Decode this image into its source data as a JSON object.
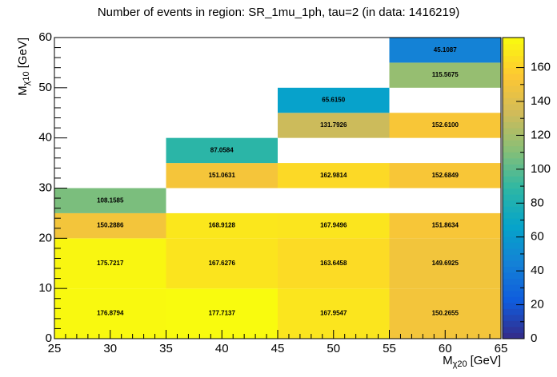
{
  "chart_data": {
    "type": "heatmap",
    "title": "Number of events in region: SR_1mu_1ph, tau=2 (in data: 1416219)",
    "xlabel": [
      "M",
      "χ20",
      "[GeV]"
    ],
    "ylabel": [
      "M",
      "χ10",
      "[GeV]"
    ],
    "xlim": [
      25,
      65
    ],
    "ylim": [
      0,
      60
    ],
    "xticks": [
      25,
      30,
      35,
      40,
      45,
      50,
      55,
      60,
      65
    ],
    "yticks": [
      0,
      10,
      20,
      30,
      40,
      50,
      60
    ],
    "zlim": [
      0,
      177.7137
    ],
    "zticks": [
      0,
      20,
      40,
      60,
      80,
      100,
      120,
      140,
      160
    ],
    "palette": [
      "#352a87",
      "#0f5cdd",
      "#1481d6",
      "#06a4ca",
      "#2eb7a4",
      "#87bf77",
      "#d1bb59",
      "#fec832",
      "#f9fb0e"
    ],
    "cells": [
      {
        "x0": 25,
        "x1": 35,
        "y0": 0,
        "y1": 10,
        "value": 176.8794
      },
      {
        "x0": 25,
        "x1": 35,
        "y0": 10,
        "y1": 20,
        "value": 175.7217
      },
      {
        "x0": 25,
        "x1": 35,
        "y0": 20,
        "y1": 25,
        "value": 150.2886
      },
      {
        "x0": 25,
        "x1": 35,
        "y0": 25,
        "y1": 30,
        "value": 108.1585
      },
      {
        "x0": 35,
        "x1": 45,
        "y0": 0,
        "y1": 10,
        "value": 177.7137
      },
      {
        "x0": 35,
        "x1": 45,
        "y0": 10,
        "y1": 20,
        "value": 167.6276
      },
      {
        "x0": 35,
        "x1": 45,
        "y0": 20,
        "y1": 25,
        "value": 168.9128
      },
      {
        "x0": 35,
        "x1": 45,
        "y0": 30,
        "y1": 35,
        "value": 151.0631
      },
      {
        "x0": 35,
        "x1": 45,
        "y0": 35,
        "y1": 40,
        "value": 87.0584
      },
      {
        "x0": 45,
        "x1": 55,
        "y0": 0,
        "y1": 10,
        "value": 167.9547
      },
      {
        "x0": 45,
        "x1": 55,
        "y0": 10,
        "y1": 20,
        "value": 163.6458
      },
      {
        "x0": 45,
        "x1": 55,
        "y0": 20,
        "y1": 25,
        "value": 167.9496
      },
      {
        "x0": 45,
        "x1": 55,
        "y0": 30,
        "y1": 35,
        "value": 162.9814
      },
      {
        "x0": 45,
        "x1": 55,
        "y0": 40,
        "y1": 45,
        "value": 131.7926
      },
      {
        "x0": 45,
        "x1": 55,
        "y0": 45,
        "y1": 50,
        "value": 65.615,
        "label": "65.6150"
      },
      {
        "x0": 55,
        "x1": 65,
        "y0": 0,
        "y1": 10,
        "value": 150.2655
      },
      {
        "x0": 55,
        "x1": 65,
        "y0": 10,
        "y1": 20,
        "value": 149.6925
      },
      {
        "x0": 55,
        "x1": 65,
        "y0": 20,
        "y1": 25,
        "value": 151.8634
      },
      {
        "x0": 55,
        "x1": 65,
        "y0": 30,
        "y1": 35,
        "value": 152.6849
      },
      {
        "x0": 55,
        "x1": 65,
        "y0": 40,
        "y1": 45,
        "value": 152.61,
        "label": "152.6100"
      },
      {
        "x0": 55,
        "x1": 65,
        "y0": 50,
        "y1": 55,
        "value": 115.5675
      },
      {
        "x0": 55,
        "x1": 65,
        "y0": 55,
        "y1": 60,
        "value": 45.1087
      }
    ]
  }
}
